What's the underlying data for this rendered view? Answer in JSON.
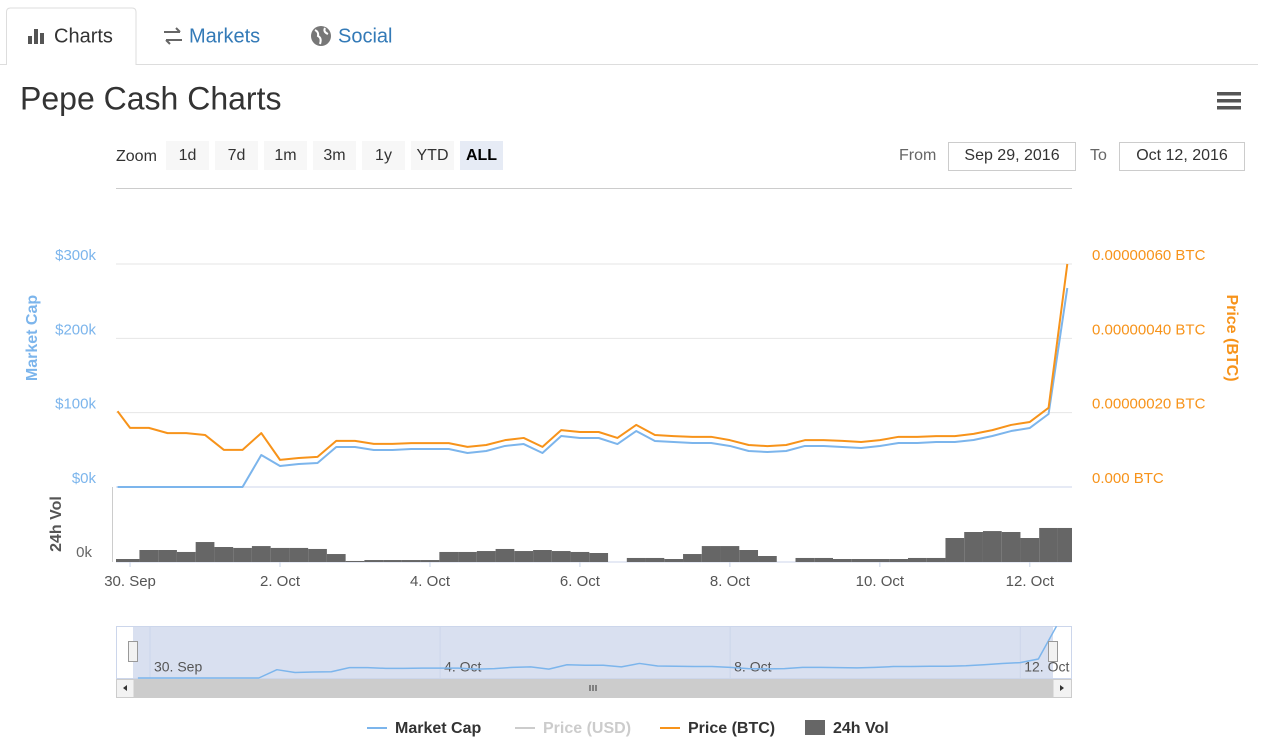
{
  "tabs": [
    "Charts",
    "Markets",
    "Social"
  ],
  "active_tab": 0,
  "title": "Pepe Cash Charts",
  "zoom": {
    "label": "Zoom",
    "buttons": [
      "1d",
      "7d",
      "1m",
      "3m",
      "1y",
      "YTD",
      "ALL"
    ],
    "active": 6
  },
  "date_range": {
    "from_label": "From",
    "from": "Sep 29, 2016",
    "to_label": "To",
    "to": "Oct 12, 2016"
  },
  "chart_data": {
    "type": "line",
    "x": [
      "2016-09-29T20:00",
      "2016-09-30T00:00",
      "2016-09-30T06:00",
      "2016-09-30T12:00",
      "2016-09-30T18:00",
      "2016-10-01T00:00",
      "2016-10-01T06:00",
      "2016-10-01T12:00",
      "2016-10-01T18:00",
      "2016-10-02T00:00",
      "2016-10-02T06:00",
      "2016-10-02T12:00",
      "2016-10-02T18:00",
      "2016-10-03T00:00",
      "2016-10-03T06:00",
      "2016-10-03T12:00",
      "2016-10-03T18:00",
      "2016-10-04T00:00",
      "2016-10-04T06:00",
      "2016-10-04T12:00",
      "2016-10-04T18:00",
      "2016-10-05T00:00",
      "2016-10-05T06:00",
      "2016-10-05T12:00",
      "2016-10-05T18:00",
      "2016-10-06T00:00",
      "2016-10-06T06:00",
      "2016-10-06T12:00",
      "2016-10-06T18:00",
      "2016-10-07T00:00",
      "2016-10-07T06:00",
      "2016-10-07T12:00",
      "2016-10-07T18:00",
      "2016-10-08T00:00",
      "2016-10-08T06:00",
      "2016-10-08T12:00",
      "2016-10-08T18:00",
      "2016-10-09T00:00",
      "2016-10-09T06:00",
      "2016-10-09T12:00",
      "2016-10-09T18:00",
      "2016-10-10T00:00",
      "2016-10-10T06:00",
      "2016-10-10T12:00",
      "2016-10-10T18:00",
      "2016-10-11T00:00",
      "2016-10-11T06:00",
      "2016-10-11T12:00",
      "2016-10-11T18:00",
      "2016-10-12T00:00",
      "2016-10-12T06:00",
      "2016-10-12T12:00"
    ],
    "xlim": [
      "2016-09-29T19:30",
      "2016-10-12T13:30"
    ],
    "xticks": [
      {
        "value": "2016-09-30",
        "label": "30. Sep"
      },
      {
        "value": "2016-10-02",
        "label": "2. Oct"
      },
      {
        "value": "2016-10-04",
        "label": "4. Oct"
      },
      {
        "value": "2016-10-06",
        "label": "6. Oct"
      },
      {
        "value": "2016-10-08",
        "label": "8. Oct"
      },
      {
        "value": "2016-10-10",
        "label": "10. Oct"
      },
      {
        "value": "2016-10-12",
        "label": "12. Oct"
      }
    ],
    "ylabel": "Market Cap",
    "ylim": [
      0,
      300000
    ],
    "yticks": [
      {
        "value": 0,
        "label": "$0k"
      },
      {
        "value": 100000,
        "label": "$100k"
      },
      {
        "value": 200000,
        "label": "$200k"
      },
      {
        "value": 300000,
        "label": "$300k"
      }
    ],
    "y2label": "Price (BTC)",
    "y2lim": [
      0,
      6e-07
    ],
    "y2ticks": [
      {
        "value": 0,
        "label": "0.000 BTC"
      },
      {
        "value": 2e-07,
        "label": "0.00000020 BTC"
      },
      {
        "value": 4e-07,
        "label": "0.00000040 BTC"
      },
      {
        "value": 6e-07,
        "label": "0.00000060 BTC"
      }
    ],
    "y3label": "24h Vol",
    "y3lim": [
      0,
      80000
    ],
    "y3ticks": [
      {
        "value": 0,
        "label": "0k"
      }
    ],
    "grid": true,
    "legend": "bottom",
    "series": [
      {
        "name": "Market Cap",
        "color": "#7cb5ec",
        "values": [
          0,
          0,
          0,
          0,
          0,
          0,
          0,
          0,
          43000,
          28300,
          30900,
          32300,
          53800,
          53800,
          49800,
          49800,
          51100,
          51100,
          51100,
          45700,
          48400,
          55200,
          57800,
          45700,
          68600,
          65900,
          65900,
          57800,
          75300,
          61900,
          60500,
          59200,
          59200,
          55200,
          48400,
          47100,
          48400,
          55200,
          55200,
          53800,
          52500,
          55200,
          59200,
          59200,
          60500,
          60500,
          63200,
          68600,
          75300,
          79400,
          98200,
          267700
        ]
      },
      {
        "name": "Price (USD)",
        "color": "#cccccc",
        "visible": false
      },
      {
        "name": "Price (BTC)",
        "color": "#f7931a",
        "axis": "y2",
        "values": [
          2.04e-07,
          1.59e-07,
          1.59e-07,
          1.45e-07,
          1.45e-07,
          1.4e-07,
          1e-07,
          1e-07,
          1.45e-07,
          7.3e-08,
          7.8e-08,
          8.1e-08,
          1.24e-07,
          1.24e-07,
          1.16e-07,
          1.16e-07,
          1.18e-07,
          1.18e-07,
          1.18e-07,
          1.08e-07,
          1.13e-07,
          1.26e-07,
          1.32e-07,
          1.08e-07,
          1.53e-07,
          1.48e-07,
          1.48e-07,
          1.32e-07,
          1.67e-07,
          1.4e-07,
          1.37e-07,
          1.35e-07,
          1.35e-07,
          1.26e-07,
          1.13e-07,
          1.1e-07,
          1.13e-07,
          1.26e-07,
          1.26e-07,
          1.24e-07,
          1.21e-07,
          1.26e-07,
          1.35e-07,
          1.35e-07,
          1.37e-07,
          1.37e-07,
          1.43e-07,
          1.53e-07,
          1.67e-07,
          1.75e-07,
          2.13e-07,
          6e-07
        ]
      },
      {
        "name": "24h Vol",
        "color": "#666666",
        "axis": "y3",
        "type": "column",
        "values": [
          3200,
          3200,
          12800,
          12800,
          10700,
          21300,
          16000,
          15000,
          17000,
          15000,
          15000,
          13900,
          8500,
          1100,
          2100,
          2100,
          2100,
          2100,
          10700,
          10700,
          11700,
          13900,
          11700,
          12800,
          11700,
          10700,
          9600,
          0,
          4300,
          4300,
          3200,
          8500,
          17000,
          17000,
          12800,
          6400,
          0,
          4300,
          4300,
          3200,
          3200,
          3200,
          3200,
          4300,
          4300,
          25600,
          32000,
          33000,
          32000,
          25600,
          36300,
          36300
        ]
      }
    ],
    "navigator": {
      "series": 0,
      "xlim": [
        "2016-09-29T12:45",
        "2016-10-12T12:30"
      ],
      "xticks": [
        {
          "value": "2016-09-30",
          "label": "30. Sep"
        },
        {
          "value": "2016-10-04",
          "label": "4. Oct"
        },
        {
          "value": "2016-10-08",
          "label": "8. Oct"
        },
        {
          "value": "2016-10-12",
          "label": "12. Oct"
        }
      ]
    }
  }
}
